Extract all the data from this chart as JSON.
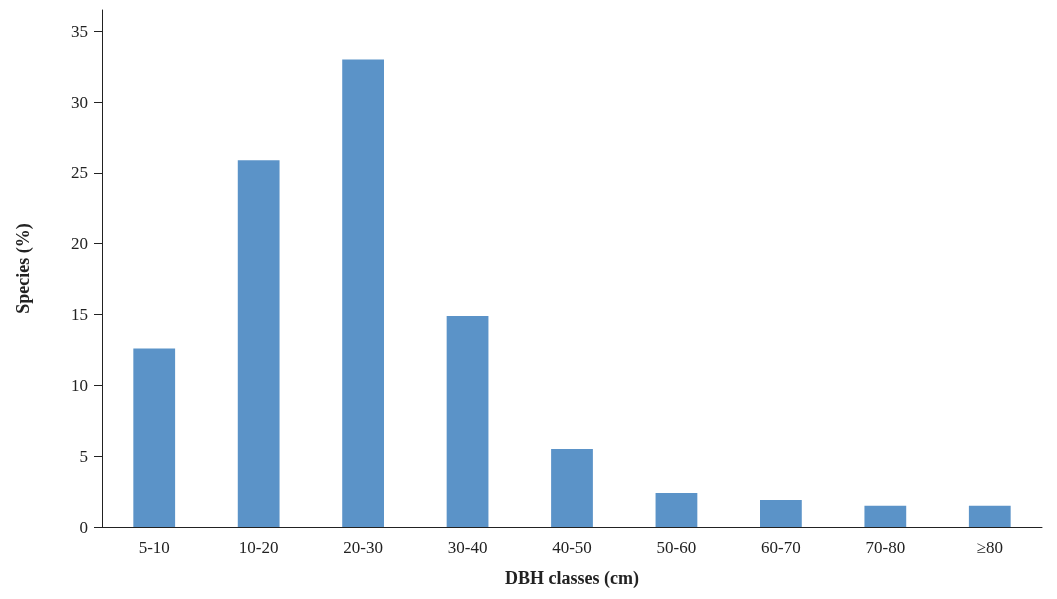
{
  "chart_data": {
    "type": "bar",
    "xlabel": "DBH classes (cm)",
    "ylabel": "Species (%)",
    "categories": [
      "5-10",
      "10-20",
      "20-30",
      "30-40",
      "40-50",
      "50-60",
      "60-70",
      "70-80",
      "≥80"
    ],
    "values": [
      12.6,
      25.9,
      33.0,
      14.9,
      5.5,
      2.4,
      1.9,
      1.5,
      1.5
    ],
    "color": "#5b93c8",
    "ylim": [
      0,
      36.5
    ],
    "yticks": [
      0,
      5,
      10,
      15,
      20,
      25,
      30,
      35
    ],
    "grid": false
  }
}
